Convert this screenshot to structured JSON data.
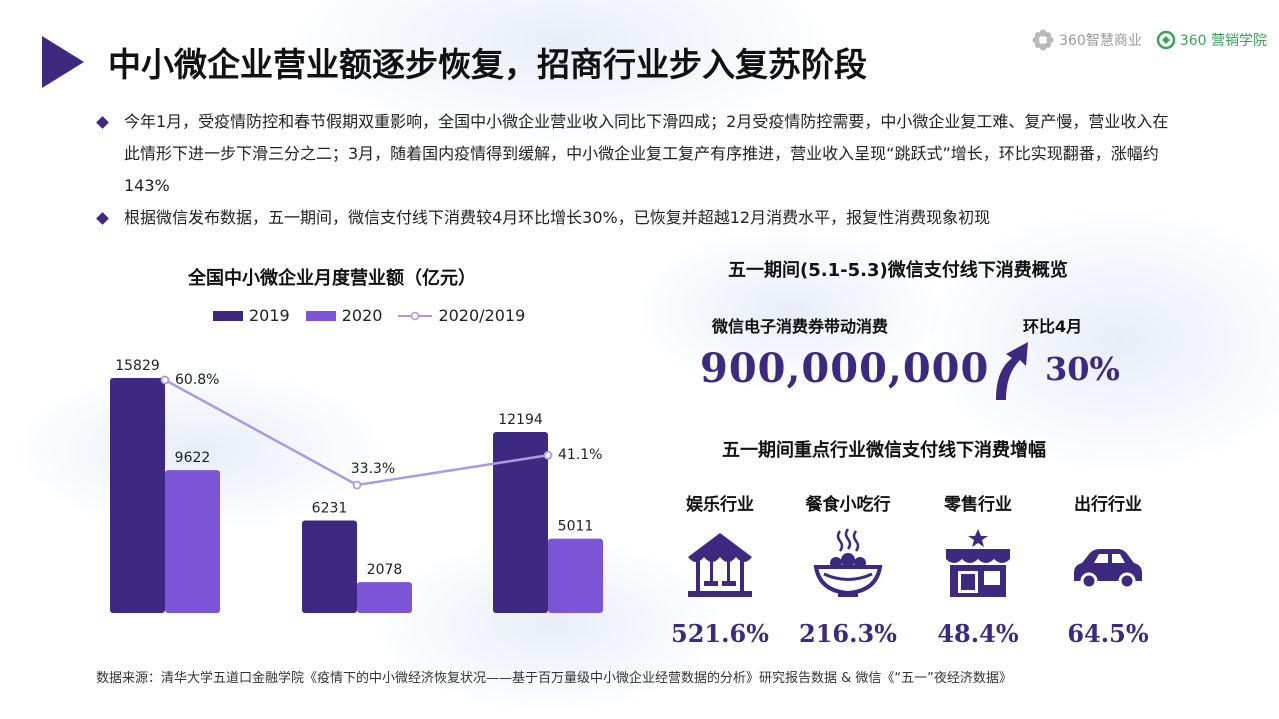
{
  "header": {
    "title": "中小微企业营业额逐步恢复，招商行业步入复苏阶段",
    "logo1": "360智慧商业",
    "logo2": "360 营销学院"
  },
  "bullets": [
    "今年1月，受疫情防控和春节假期双重影响，全国中小微企业营业收入同比下滑四成；2月受疫情防控需要，中小微企业复工难、复产慢，营业收入在此情形下进一步下滑三分之二；3月，随着国内疫情得到缓解，中小微企业复工复产有序推进，营业收入呈现“跳跃式”增长，环比实现翻番，涨幅约143%",
    "根据微信发布数据，五一期间，微信支付线下消费较4月环比增长30%，已恢复并超越12月消费水平，报复性消费现象初现"
  ],
  "chart_data": {
    "type": "bar",
    "title": "全国中小微企业月度营业额（亿元）",
    "categories": [
      "",
      "",
      ""
    ],
    "series": [
      {
        "name": "2019",
        "type": "bar",
        "values": [
          15829,
          6231,
          12194
        ],
        "color": "#3d2a80"
      },
      {
        "name": "2020",
        "type": "bar",
        "values": [
          9622,
          2078,
          5011
        ],
        "color": "#7b55d6"
      },
      {
        "name": "2020/2019",
        "type": "line",
        "values": [
          60.8,
          33.3,
          41.1
        ],
        "labels": [
          "60.8%",
          "33.3%",
          "41.1%"
        ],
        "color": "#a99be0"
      }
    ],
    "legend_position": "top",
    "grid": false
  },
  "right": {
    "title1": "五一期间(5.1-5.3)微信支付线下消费概览",
    "sub1": "微信电子消费券带动消费",
    "big_number": "900,000,000",
    "sub2": "环比4月",
    "big_pct": "30%",
    "title2": "五一期间重点行业微信支付线下消费增幅",
    "industries": [
      {
        "name": "娱乐行业",
        "value": "521.6%",
        "icon": "carousel-icon"
      },
      {
        "name": "餐食小吃行",
        "value": "216.3%",
        "icon": "food-bowl-icon"
      },
      {
        "name": "零售行业",
        "value": "48.4%",
        "icon": "store-icon"
      },
      {
        "name": "出行行业",
        "value": "64.5%",
        "icon": "car-icon"
      }
    ]
  },
  "footer": {
    "source": "数据来源：清华大学五道口金融学院《疫情下的中小微经济恢复状况——基于百万量级中小微企业经营数据的分析》研究报告数据 & 微信《“五一”夜经济数据》"
  },
  "colors": {
    "primary": "#3d2a80",
    "secondary": "#7b55d6",
    "line": "#a99be0"
  }
}
